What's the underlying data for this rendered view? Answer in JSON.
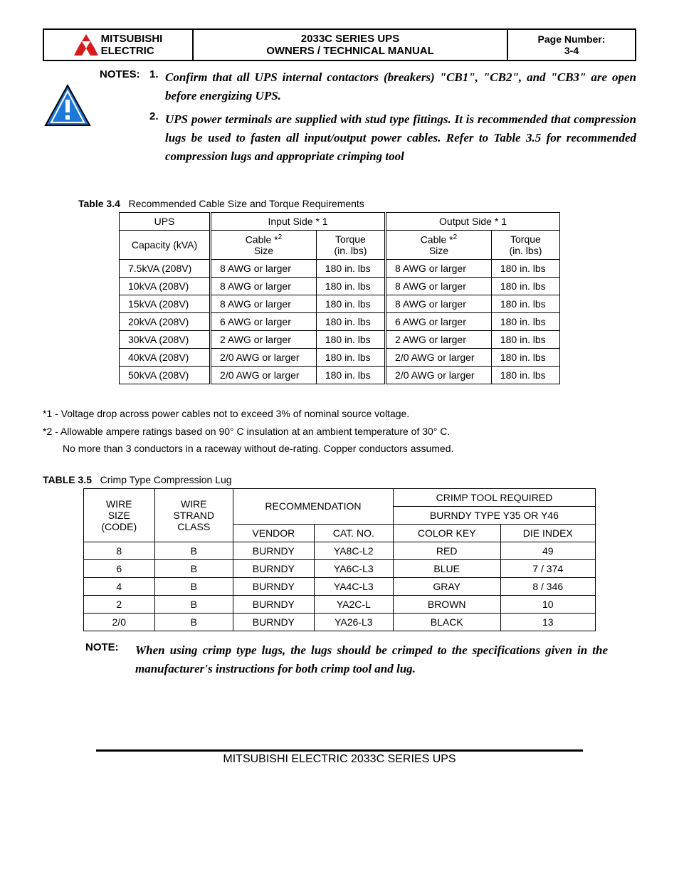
{
  "header": {
    "brand_line1": "MITSUBISHI",
    "brand_line2": "ELECTRIC",
    "title_line1": "2033C SERIES UPS",
    "title_line2": "OWNERS / TECHNICAL MANUAL",
    "pagenum_label": "Page Number:",
    "pagenum_value": "3-4"
  },
  "logo": {
    "fill": "#d81a1a",
    "stroke": "#000000"
  },
  "warn_icon": {
    "fill": "#1e78d8",
    "border": "#000000",
    "bang": "#ffffff"
  },
  "notes": {
    "label": "NOTES:",
    "item1_num": "1.",
    "item1_text": "Confirm that all UPS internal contactors (breakers) \"CB1\", \"CB2\", and \"CB3\" are open before energizing UPS.",
    "item2_num": "2.",
    "item2_text": "UPS power terminals are supplied with stud type fittings. It is recommended that compression lugs be used to fasten all input/output power cables. Refer to Table 3.5 for recommended compression lugs and appropriate crimping tool"
  },
  "table34": {
    "caption_bold": "Table 3.4",
    "caption_rest": "Recommended Cable Size and Torque Requirements",
    "h_ups1": "UPS",
    "h_ups2": "Capacity (kVA)",
    "h_input": "Input Side * 1",
    "h_output": "Output Side * 1",
    "h_cable1": "Cable *",
    "h_cable_sup": "2",
    "h_cable2": "Size",
    "h_torque1": "Torque",
    "h_torque2": "(in. lbs)",
    "rows": [
      {
        "cap": "7.5kVA (208V)",
        "in_cable": "8 AWG or larger",
        "in_tq": "180 in. lbs",
        "out_cable": "8 AWG or larger",
        "out_tq": "180 in. lbs"
      },
      {
        "cap": "10kVA (208V)",
        "in_cable": "8 AWG or larger",
        "in_tq": "180 in. lbs",
        "out_cable": "8 AWG or larger",
        "out_tq": "180 in. lbs"
      },
      {
        "cap": "15kVA (208V)",
        "in_cable": "8 AWG or larger",
        "in_tq": "180 in. lbs",
        "out_cable": "8 AWG or larger",
        "out_tq": "180 in. lbs"
      },
      {
        "cap": "20kVA (208V)",
        "in_cable": "6 AWG or larger",
        "in_tq": "180 in. lbs",
        "out_cable": "6 AWG or larger",
        "out_tq": "180 in. lbs"
      },
      {
        "cap": "30kVA (208V)",
        "in_cable": "2 AWG or larger",
        "in_tq": "180 in. lbs",
        "out_cable": "2 AWG or larger",
        "out_tq": "180 in. lbs"
      },
      {
        "cap": "40kVA (208V)",
        "in_cable": "2/0 AWG or larger",
        "in_tq": "180 in. lbs",
        "out_cable": "2/0 AWG or larger",
        "out_tq": "180 in. lbs"
      },
      {
        "cap": "50kVA (208V)",
        "in_cable": "2/0 AWG or larger",
        "in_tq": "180 in. lbs",
        "out_cable": "2/0 AWG or larger",
        "out_tq": "180 in. lbs"
      }
    ]
  },
  "footnotes": {
    "fn1": "*1 - Voltage drop across power cables not to exceed 3% of nominal source voltage.",
    "fn2": "*2 - Allowable ampere ratings based on 90° C insulation at an ambient temperature of 30° C.",
    "fn2b": "No more than 3 conductors in a raceway without de-rating. Copper conductors assumed."
  },
  "table35": {
    "caption_bold": "TABLE 3.5",
    "caption_rest": "Crimp Type Compression Lug",
    "h_wire1": "WIRE",
    "h_wire2": "SIZE",
    "h_wire3": "(CODE)",
    "h_strand1": "WIRE",
    "h_strand2": "STRAND",
    "h_strand3": "CLASS",
    "h_rec": "RECOMMENDATION",
    "h_vendor": "VENDOR",
    "h_catno": "CAT. NO.",
    "h_crimp1": "CRIMP TOOL REQUIRED",
    "h_crimp2": "BURNDY TYPE Y35 OR Y46",
    "h_colorkey": "COLOR KEY",
    "h_die": "DIE INDEX",
    "rows": [
      {
        "wire": "8",
        "strand": "B",
        "vendor": "BURNDY",
        "cat": "YA8C-L2",
        "color": "RED",
        "die": "49"
      },
      {
        "wire": "6",
        "strand": "B",
        "vendor": "BURNDY",
        "cat": "YA6C-L3",
        "color": "BLUE",
        "die": "7 / 374"
      },
      {
        "wire": "4",
        "strand": "B",
        "vendor": "BURNDY",
        "cat": "YA4C-L3",
        "color": "GRAY",
        "die": "8 / 346"
      },
      {
        "wire": "2",
        "strand": "B",
        "vendor": "BURNDY",
        "cat": "YA2C-L",
        "color": "BROWN",
        "die": "10"
      },
      {
        "wire": "2/0",
        "strand": "B",
        "vendor": "BURNDY",
        "cat": "YA26-L3",
        "color": "BLACK",
        "die": "13"
      }
    ]
  },
  "bottom_note": {
    "label": "NOTE:",
    "text": "When using crimp type lugs, the lugs should be crimped to the specifications given in the manufacturer's instructions for both crimp tool and lug."
  },
  "footer": {
    "text": "MITSUBISHI ELECTRIC 2033C SERIES UPS"
  }
}
